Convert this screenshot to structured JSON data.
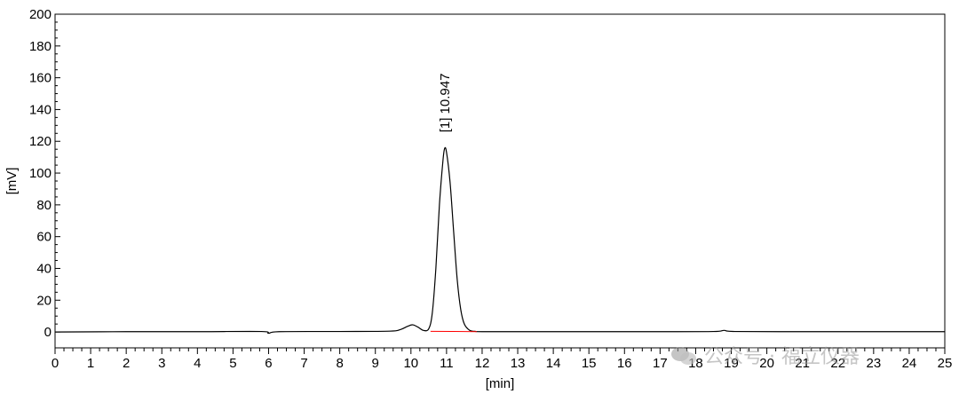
{
  "chart_data": {
    "type": "line",
    "title": "",
    "xlabel": "[min]",
    "ylabel": "[mV]",
    "xlim": [
      0,
      25
    ],
    "ylim": [
      -10,
      200
    ],
    "xticks": [
      0,
      1,
      2,
      3,
      4,
      5,
      6,
      7,
      8,
      9,
      10,
      11,
      12,
      13,
      14,
      15,
      16,
      17,
      18,
      19,
      20,
      21,
      22,
      23,
      24,
      25
    ],
    "yticks": [
      0,
      20,
      40,
      60,
      80,
      100,
      120,
      140,
      160,
      180,
      200
    ],
    "grid": false,
    "series": [
      {
        "color": "#000000",
        "x": [
          0,
          2,
          4,
          5.8,
          6.0,
          6.3,
          8,
          9.4,
          9.7,
          9.9,
          10.05,
          10.2,
          10.35,
          10.5,
          10.6,
          10.7,
          10.8,
          10.9,
          10.947,
          11.0,
          11.1,
          11.2,
          11.3,
          11.4,
          11.5,
          11.65,
          11.8,
          12.0,
          13,
          14.5,
          15,
          17,
          18.5,
          18.8,
          19.1,
          21,
          23,
          25
        ],
        "y": [
          0,
          0.2,
          0.2,
          0.3,
          -0.8,
          0.2,
          0.3,
          0.5,
          1.5,
          3.5,
          4.5,
          3,
          1,
          2,
          12,
          40,
          80,
          108,
          115.5,
          113,
          94,
          63,
          33,
          14,
          5,
          1,
          0.4,
          0.2,
          0.2,
          0.2,
          0.2,
          0.2,
          0.3,
          1,
          0.3,
          0.2,
          0.2,
          0.2
        ]
      },
      {
        "color": "#ff0000",
        "x": [
          10.55,
          11.85
        ],
        "y": [
          0.4,
          0.2
        ]
      }
    ],
    "annotations": [
      {
        "x": 10.947,
        "y": 115.5,
        "label": "[1]  10.947"
      }
    ]
  },
  "watermark": {
    "text": "公众号 · 福立仪器",
    "icon": "wechat-icon"
  }
}
